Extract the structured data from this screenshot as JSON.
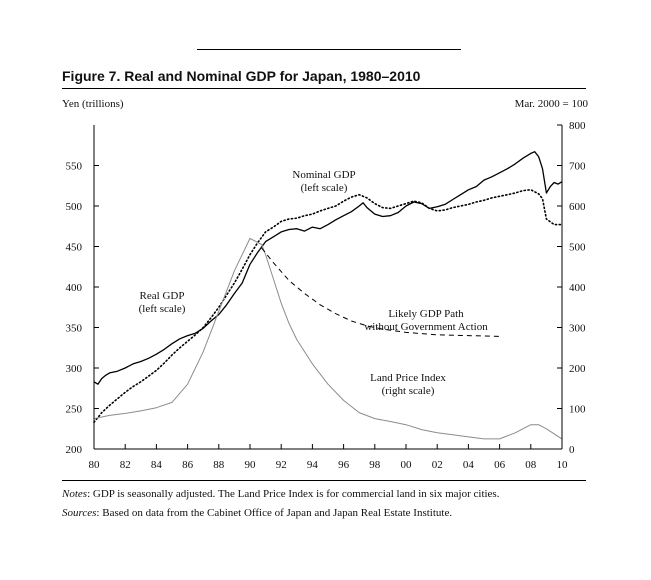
{
  "figure": {
    "title": "Figure 7.   Real and Nominal GDP for Japan, 1980–2010",
    "left_unit": "Yen (trillions)",
    "right_unit": "Mar. 2000 = 100",
    "notes_label": "Notes",
    "notes_text": ": GDP is seasonally adjusted. The Land Price Index is for commercial land in six major cities.",
    "sources_label": "Sources",
    "sources_text": ": Based on data from the Cabinet Office of Japan and Japan Real Estate Institute."
  },
  "chart_data": {
    "type": "line",
    "title": "Real and Nominal GDP for Japan, 1980–2010",
    "xlabel": "",
    "ylabel": "Yen (trillions)",
    "y2label": "Mar. 2000 = 100",
    "xlim": [
      1980,
      2010
    ],
    "ylim": [
      200,
      600
    ],
    "y2lim": [
      0,
      800
    ],
    "x_ticks": [
      1980,
      1982,
      1984,
      1986,
      1988,
      1990,
      1992,
      1994,
      1996,
      1998,
      2000,
      2002,
      2004,
      2006,
      2008,
      2010
    ],
    "x_tick_labels": [
      "80",
      "82",
      "84",
      "86",
      "88",
      "90",
      "92",
      "94",
      "96",
      "98",
      "00",
      "02",
      "04",
      "06",
      "08",
      "10"
    ],
    "y_ticks": [
      200,
      250,
      300,
      350,
      400,
      450,
      500,
      550
    ],
    "y2_ticks": [
      0,
      100,
      200,
      300,
      400,
      500,
      600,
      700,
      800
    ],
    "series": [
      {
        "name": "Real GDP",
        "axis": "left",
        "style": "solid",
        "color": "#000000",
        "x": [
          1980,
          1980.25,
          1980.5,
          1980.75,
          1981,
          1981.5,
          1982,
          1982.5,
          1983,
          1983.5,
          1984,
          1984.5,
          1985,
          1985.5,
          1986,
          1986.5,
          1987,
          1987.5,
          1988,
          1988.5,
          1989,
          1989.5,
          1990,
          1990.5,
          1991,
          1991.5,
          1992,
          1992.5,
          1993,
          1993.5,
          1994,
          1994.5,
          1995,
          1995.5,
          1996,
          1996.5,
          1997,
          1997.25,
          1997.5,
          1998,
          1998.5,
          1999,
          1999.5,
          2000,
          2000.5,
          2001,
          2001.5,
          2002,
          2002.5,
          2003,
          2003.5,
          2004,
          2004.5,
          2005,
          2005.5,
          2006,
          2006.5,
          2007,
          2007.5,
          2008,
          2008.25,
          2008.5,
          2008.75,
          2009,
          2009.25,
          2009.5,
          2009.75,
          2010
        ],
        "y": [
          283,
          280,
          287,
          291,
          294,
          296,
          300,
          305,
          308,
          312,
          317,
          323,
          330,
          336,
          340,
          343,
          349,
          358,
          366,
          378,
          392,
          405,
          428,
          443,
          456,
          462,
          468,
          471,
          472,
          469,
          474,
          472,
          477,
          483,
          488,
          493,
          500,
          504,
          498,
          490,
          487,
          488,
          492,
          500,
          505,
          503,
          497,
          499,
          502,
          508,
          514,
          520,
          524,
          532,
          536,
          541,
          546,
          552,
          559,
          565,
          567,
          561,
          546,
          516,
          524,
          529,
          527,
          530
        ]
      },
      {
        "name": "Nominal GDP",
        "axis": "left",
        "style": "dotted",
        "color": "#000000",
        "x": [
          1980,
          1980.5,
          1981,
          1981.5,
          1982,
          1982.5,
          1983,
          1983.5,
          1984,
          1984.5,
          1985,
          1985.5,
          1986,
          1986.5,
          1987,
          1987.5,
          1988,
          1988.5,
          1989,
          1989.5,
          1990,
          1990.5,
          1991,
          1991.5,
          1992,
          1992.5,
          1993,
          1993.5,
          1994,
          1994.5,
          1995,
          1995.5,
          1996,
          1996.5,
          1997,
          1997.5,
          1998,
          1998.5,
          1999,
          1999.5,
          2000,
          2000.5,
          2001,
          2001.5,
          2002,
          2002.5,
          2003,
          2003.5,
          2004,
          2004.5,
          2005,
          2005.5,
          2006,
          2006.5,
          2007,
          2007.5,
          2008,
          2008.5,
          2008.75,
          2009,
          2009.5,
          2010
        ],
        "y": [
          233,
          245,
          254,
          262,
          270,
          277,
          283,
          290,
          297,
          306,
          316,
          325,
          333,
          341,
          350,
          362,
          375,
          390,
          405,
          422,
          440,
          455,
          468,
          474,
          481,
          484,
          485,
          488,
          490,
          494,
          497,
          500,
          506,
          511,
          514,
          510,
          503,
          498,
          497,
          500,
          503,
          506,
          504,
          497,
          494,
          495,
          498,
          500,
          502,
          505,
          507,
          510,
          512,
          514,
          516,
          519,
          520,
          515,
          509,
          484,
          477,
          477
        ]
      },
      {
        "name": "Land Price Index",
        "axis": "right",
        "style": "solid",
        "color": "#8c8c8c",
        "x": [
          1980,
          1981,
          1982,
          1983,
          1984,
          1985,
          1986,
          1987,
          1988,
          1989,
          1990,
          1990.75,
          1991,
          1991.5,
          1992,
          1992.5,
          1993,
          1994,
          1995,
          1996,
          1997,
          1998,
          1999,
          2000,
          2001,
          2002,
          2003,
          2004,
          2005,
          2006,
          2007,
          2008,
          2008.5,
          2009,
          2010
        ],
        "y": [
          75,
          83,
          88,
          94,
          102,
          115,
          160,
          240,
          340,
          440,
          520,
          505,
          480,
          420,
          360,
          310,
          270,
          210,
          160,
          120,
          90,
          75,
          68,
          60,
          48,
          40,
          35,
          30,
          25,
          25,
          40,
          60,
          60,
          50,
          25
        ]
      },
      {
        "name": "Likely GDP Path without Government Action",
        "axis": "left",
        "style": "dashed",
        "color": "#000000",
        "x": [
          1990.75,
          1991.5,
          1992.5,
          1993.5,
          1994.5,
          1995.5,
          1996.5,
          1997.5,
          1998.5,
          2000,
          2002,
          2004,
          2006
        ],
        "y": [
          448,
          430,
          408,
          392,
          378,
          367,
          358,
          352,
          348,
          344,
          341,
          340,
          339
        ]
      }
    ],
    "annotations": [
      {
        "label": "Nominal GDP",
        "sub": "(left scale)"
      },
      {
        "label": "Real GDP",
        "sub": "(left scale)"
      },
      {
        "label": "Likely GDP Path",
        "sub": "without Government Action"
      },
      {
        "label": "Land Price Index",
        "sub": "(right scale)"
      }
    ]
  }
}
